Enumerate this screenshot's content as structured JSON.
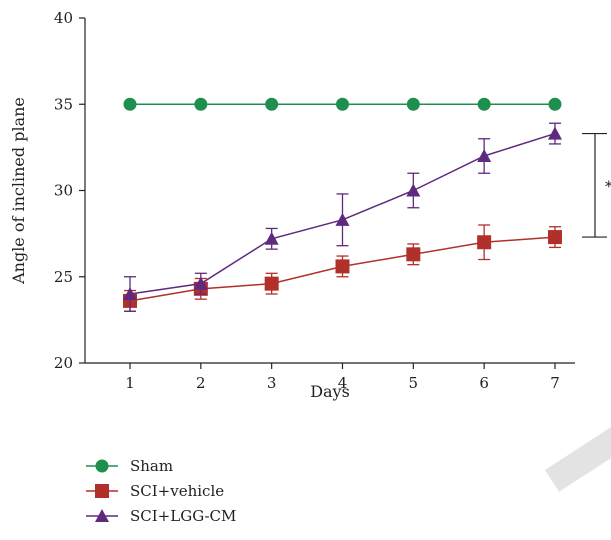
{
  "chart_data": {
    "type": "line",
    "title": "",
    "xlabel": "Days",
    "ylabel": "Angle of inclined plane",
    "x": [
      1,
      2,
      3,
      4,
      5,
      6,
      7
    ],
    "ylim": [
      20,
      40
    ],
    "yticks": [
      20,
      25,
      30,
      35,
      40
    ],
    "grid": false,
    "legend_position": "bottom-left",
    "series": [
      {
        "name": "Sham",
        "color": "#1e8f4e",
        "marker": "circle",
        "values": [
          35,
          35,
          35,
          35,
          35,
          35,
          35
        ],
        "errors": [
          0,
          0,
          0,
          0,
          0,
          0,
          0
        ]
      },
      {
        "name": "SCI+vehicle",
        "color": "#b2302a",
        "marker": "square",
        "values": [
          23.6,
          24.3,
          24.6,
          25.6,
          26.3,
          27.0,
          27.3
        ],
        "errors": [
          0.6,
          0.6,
          0.6,
          0.6,
          0.6,
          1.0,
          0.6
        ]
      },
      {
        "name": "SCI+LGG-CM",
        "color": "#5e2a7e",
        "marker": "triangle",
        "values": [
          24.0,
          24.6,
          27.2,
          28.3,
          30.0,
          32.0,
          33.3
        ],
        "errors": [
          1.0,
          0.6,
          0.6,
          1.5,
          1.0,
          1.0,
          0.6
        ]
      }
    ],
    "annotations": [
      {
        "type": "significance-bracket",
        "between": [
          "SCI+LGG-CM",
          "SCI+vehicle"
        ],
        "at_x": 7,
        "text": "*"
      }
    ]
  }
}
